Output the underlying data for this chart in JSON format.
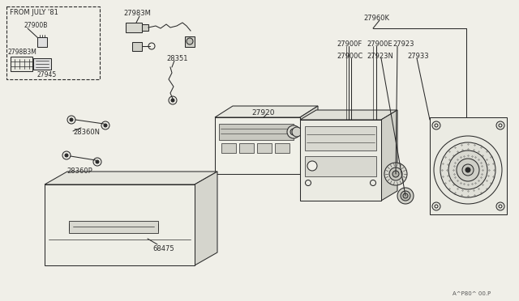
{
  "bg_color": "#f0efe8",
  "line_color": "#2a2a2a",
  "bg_fill": "#f0efe8",
  "part_ref": "A^P80^ 00.P",
  "labels": [
    "FROM JULY '81",
    "27900B",
    "2798B3M",
    "27945",
    "27983M",
    "28351",
    "27920",
    "28360N",
    "28360P",
    "68475",
    "27960K",
    "27900F",
    "27900C",
    "27900E",
    "27923",
    "27923N",
    "27933"
  ]
}
